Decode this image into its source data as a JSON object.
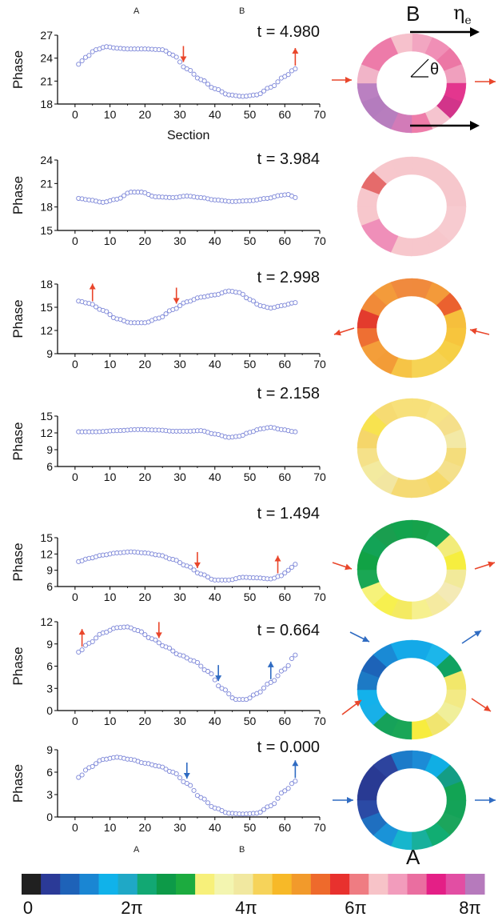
{
  "figure": {
    "top_marker_a": "A",
    "top_marker_b": "B",
    "bottom_marker_a": "A",
    "bottom_marker_b": "B",
    "panel_letter_b": "B",
    "panel_letter_a": "A",
    "eta_label": "η",
    "eta_sub": "e",
    "theta_label": "θ",
    "section_label": "Section",
    "phase_label": "Phase"
  },
  "colorbar": {
    "colors": [
      "#202020",
      "#2b3a97",
      "#1e62b8",
      "#1a86d3",
      "#10b2ea",
      "#1fa8c6",
      "#12a873",
      "#0d9a48",
      "#1cab3f",
      "#f7f07a",
      "#f3f5b0",
      "#f1e8a0",
      "#f6d35a",
      "#f7b928",
      "#f29a2b",
      "#ee6a2c",
      "#e8312e",
      "#ef7c82",
      "#f7c3c8",
      "#f29cbc",
      "#ea6ea0",
      "#e41f86",
      "#e24ea3",
      "#b67abc"
    ],
    "labels": [
      "0",
      "2π",
      "4π",
      "6π",
      "8π"
    ]
  },
  "chart_data": [
    {
      "type": "scatter",
      "id": "t4980",
      "t_label": "t = 4.980",
      "xlim": [
        -5,
        70
      ],
      "ylim": [
        18,
        27
      ],
      "xticks": [
        0,
        10,
        20,
        30,
        40,
        50,
        60,
        70
      ],
      "yticks": [
        18,
        21,
        24,
        27
      ],
      "kp": [
        [
          1,
          23.2
        ],
        [
          3,
          24.1
        ],
        [
          6,
          25.1
        ],
        [
          9,
          25.5
        ],
        [
          12,
          25.3
        ],
        [
          15,
          25.2
        ],
        [
          20,
          25.2
        ],
        [
          25,
          25.1
        ],
        [
          28,
          24.4
        ],
        [
          32,
          22.6
        ],
        [
          36,
          21.2
        ],
        [
          40,
          20.0
        ],
        [
          44,
          19.2
        ],
        [
          48,
          19.0
        ],
        [
          52,
          19.2
        ],
        [
          56,
          20.2
        ],
        [
          60,
          21.6
        ],
        [
          63,
          22.6
        ]
      ],
      "arrows": [
        {
          "x": 31,
          "dir": "down",
          "color": "red"
        },
        {
          "x": 63,
          "dir": "up",
          "color": "red"
        }
      ]
    },
    {
      "type": "scatter",
      "id": "t3984",
      "t_label": "t = 3.984",
      "xlim": [
        -5,
        70
      ],
      "ylim": [
        15,
        24
      ],
      "xticks": [
        0,
        10,
        20,
        30,
        40,
        50,
        60,
        70
      ],
      "yticks": [
        15,
        18,
        21,
        24
      ],
      "kp": [
        [
          1,
          19.1
        ],
        [
          4,
          18.9
        ],
        [
          8,
          18.6
        ],
        [
          12,
          19.0
        ],
        [
          16,
          19.9
        ],
        [
          19,
          19.9
        ],
        [
          23,
          19.3
        ],
        [
          28,
          19.2
        ],
        [
          32,
          19.4
        ],
        [
          36,
          19.2
        ],
        [
          40,
          18.9
        ],
        [
          45,
          18.7
        ],
        [
          50,
          18.8
        ],
        [
          55,
          19.1
        ],
        [
          59,
          19.5
        ],
        [
          61,
          19.6
        ],
        [
          63,
          19.2
        ]
      ],
      "arrows": []
    },
    {
      "type": "scatter",
      "id": "t2998",
      "t_label": "t = 2.998",
      "xlim": [
        -5,
        70
      ],
      "ylim": [
        9,
        18
      ],
      "xticks": [
        0,
        10,
        20,
        30,
        40,
        50,
        60,
        70
      ],
      "yticks": [
        9,
        12,
        15,
        18
      ],
      "kp": [
        [
          1,
          15.8
        ],
        [
          4,
          15.5
        ],
        [
          8,
          14.6
        ],
        [
          12,
          13.5
        ],
        [
          16,
          13.0
        ],
        [
          20,
          13.0
        ],
        [
          24,
          13.6
        ],
        [
          28,
          14.7
        ],
        [
          32,
          15.7
        ],
        [
          36,
          16.3
        ],
        [
          40,
          16.6
        ],
        [
          44,
          17.1
        ],
        [
          47,
          16.9
        ],
        [
          50,
          16.0
        ],
        [
          53,
          15.2
        ],
        [
          56,
          14.9
        ],
        [
          59,
          15.2
        ],
        [
          63,
          15.6
        ]
      ],
      "arrows": [
        {
          "x": 5,
          "dir": "up",
          "color": "red"
        },
        {
          "x": 29,
          "dir": "down",
          "color": "red"
        }
      ]
    },
    {
      "type": "scatter",
      "id": "t2158",
      "t_label": "t = 2.158",
      "xlim": [
        -5,
        70
      ],
      "ylim": [
        6,
        15
      ],
      "xticks": [
        0,
        10,
        20,
        30,
        40,
        50,
        60,
        70
      ],
      "yticks": [
        6,
        9,
        12,
        15
      ],
      "kp": [
        [
          1,
          12.2
        ],
        [
          6,
          12.2
        ],
        [
          12,
          12.4
        ],
        [
          18,
          12.6
        ],
        [
          24,
          12.5
        ],
        [
          28,
          12.3
        ],
        [
          32,
          12.3
        ],
        [
          36,
          12.4
        ],
        [
          40,
          11.8
        ],
        [
          44,
          11.2
        ],
        [
          47,
          11.4
        ],
        [
          50,
          12.1
        ],
        [
          53,
          12.7
        ],
        [
          56,
          13.0
        ],
        [
          59,
          12.6
        ],
        [
          63,
          12.2
        ]
      ],
      "arrows": []
    },
    {
      "type": "scatter",
      "id": "t1494",
      "t_label": "t = 1.494",
      "xlim": [
        -5,
        70
      ],
      "ylim": [
        6,
        15
      ],
      "xticks": [
        0,
        10,
        20,
        30,
        40,
        50,
        60,
        70
      ],
      "yticks": [
        6,
        9,
        12,
        15
      ],
      "kp": [
        [
          1,
          10.6
        ],
        [
          4,
          11.2
        ],
        [
          8,
          11.8
        ],
        [
          12,
          12.2
        ],
        [
          16,
          12.4
        ],
        [
          20,
          12.2
        ],
        [
          24,
          11.8
        ],
        [
          28,
          11.0
        ],
        [
          32,
          9.8
        ],
        [
          36,
          8.3
        ],
        [
          40,
          7.2
        ],
        [
          44,
          7.2
        ],
        [
          48,
          7.7
        ],
        [
          52,
          7.6
        ],
        [
          56,
          7.4
        ],
        [
          59,
          8.0
        ],
        [
          61,
          9.0
        ],
        [
          63,
          10.1
        ]
      ],
      "arrows": [
        {
          "x": 35,
          "dir": "down",
          "color": "red"
        },
        {
          "x": 58,
          "dir": "up",
          "color": "red"
        }
      ]
    },
    {
      "type": "scatter",
      "id": "t0664",
      "t_label": "t = 0.664",
      "xlim": [
        -5,
        70
      ],
      "ylim": [
        0,
        12
      ],
      "xticks": [
        0,
        10,
        20,
        30,
        40,
        50,
        60,
        70
      ],
      "yticks": [
        0,
        3,
        6,
        9,
        12
      ],
      "kp": [
        [
          1,
          7.9
        ],
        [
          4,
          9.1
        ],
        [
          8,
          10.5
        ],
        [
          12,
          11.2
        ],
        [
          15,
          11.3
        ],
        [
          18,
          10.8
        ],
        [
          22,
          9.7
        ],
        [
          26,
          8.6
        ],
        [
          30,
          7.5
        ],
        [
          34,
          6.7
        ],
        [
          38,
          5.3
        ],
        [
          42,
          3.0
        ],
        [
          46,
          1.5
        ],
        [
          49,
          1.5
        ],
        [
          52,
          2.3
        ],
        [
          56,
          3.8
        ],
        [
          60,
          5.6
        ],
        [
          63,
          7.5
        ]
      ],
      "arrows": [
        {
          "x": 2,
          "dir": "up",
          "color": "red"
        },
        {
          "x": 24,
          "dir": "down",
          "color": "red"
        },
        {
          "x": 41,
          "dir": "down",
          "color": "blue"
        },
        {
          "x": 56,
          "dir": "up",
          "color": "blue"
        }
      ]
    },
    {
      "type": "scatter",
      "id": "t0000",
      "t_label": "t = 0.000",
      "xlim": [
        -5,
        70
      ],
      "ylim": [
        0,
        9
      ],
      "xticks": [
        0,
        10,
        20,
        30,
        40,
        50,
        60,
        70
      ],
      "yticks": [
        0,
        3,
        6,
        9
      ],
      "kp": [
        [
          1,
          5.3
        ],
        [
          4,
          6.6
        ],
        [
          8,
          7.7
        ],
        [
          12,
          8.0
        ],
        [
          16,
          7.7
        ],
        [
          20,
          7.2
        ],
        [
          24,
          6.8
        ],
        [
          28,
          6.0
        ],
        [
          32,
          4.5
        ],
        [
          36,
          2.6
        ],
        [
          40,
          1.2
        ],
        [
          44,
          0.5
        ],
        [
          48,
          0.4
        ],
        [
          52,
          0.5
        ],
        [
          56,
          1.5
        ],
        [
          60,
          3.5
        ],
        [
          63,
          4.8
        ]
      ],
      "arrows": [
        {
          "x": 32,
          "dir": "down",
          "color": "blue"
        },
        {
          "x": 63,
          "dir": "up",
          "color": "blue"
        }
      ]
    }
  ],
  "rings": [
    {
      "sectors": [
        "#f2a6c1",
        "#f08fb6",
        "#ec77a5",
        "#f0a0be",
        "#e3368e",
        "#d2348a",
        "#f5c4cf",
        "#ee7ca9",
        "#d27bb8",
        "#b77ebe",
        "#b47cbe",
        "#ba80c1",
        "#f1b4c8",
        "#ed7ba9",
        "#ed7ba9",
        "#f6c1cc"
      ],
      "side_arrows": [
        "red-right",
        "red-right"
      ]
    },
    {
      "sectors": [
        "#f6c7cc",
        "#f6c7cc",
        "#f6c7cc",
        "#f6c7cc",
        "#f7cbd0",
        "#f7cbd0",
        "#f7c7cc",
        "#f7c7cc",
        "#f7c7cc",
        "#ef8fb9",
        "#ef8fb9",
        "#f7c7cc",
        "#f7c7cc",
        "#e56b6b",
        "#f7c7cc",
        "#f6c7cc"
      ],
      "side_arrows": []
    },
    {
      "sectors": [
        "#f08a3d",
        "#f39a3a",
        "#eb612f",
        "#f6bf3c",
        "#f7c53d",
        "#f6cf45",
        "#f6d354",
        "#f6d354",
        "#f6c446",
        "#f39c37",
        "#f49e3a",
        "#ee6f33",
        "#e33b2d",
        "#f18a38",
        "#f39b3b",
        "#f08a3e"
      ],
      "side_arrows": [
        "red-left",
        "red-left"
      ]
    },
    {
      "sectors": [
        "#f7e07a",
        "#f7e485",
        "#f5df8a",
        "#f3e9a6",
        "#f4dd7c",
        "#f4e08b",
        "#f6d968",
        "#f5da74",
        "#f5da74",
        "#f2e6a1",
        "#f3ea9f",
        "#f5e189",
        "#f5d66a",
        "#f8e34f",
        "#f6db72",
        "#f7e07a"
      ],
      "side_arrows": []
    },
    {
      "sectors": [
        "#16a24b",
        "#19a752",
        "#f2ec7a",
        "#f6ee3f",
        "#f2ea9a",
        "#f4eab6",
        "#f5eaa0",
        "#f6f08e",
        "#f4ea62",
        "#f7f04f",
        "#f6f27a",
        "#1aa754",
        "#11a245",
        "#13a356",
        "#1a9e4f",
        "#12a34e"
      ],
      "side_arrows": [
        "red-right",
        "red-right"
      ]
    },
    {
      "sectors": [
        "#14a9e8",
        "#1cb6ea",
        "#10a261",
        "#f2e76a",
        "#f3ea85",
        "#f0ef9a",
        "#f1e570",
        "#f7ec3f",
        "#1aa657",
        "#16a25a",
        "#18b0e8",
        "#13b1eb",
        "#1d7ac5",
        "#1d63b8",
        "#1a8ad5",
        "#14a9e8"
      ],
      "side_arrows": [
        "blue-up-out",
        "blue-up-out",
        "red-down-out",
        "red-down-out"
      ]
    },
    {
      "sectors": [
        "#1c8bd6",
        "#10aee4",
        "#149d85",
        "#12a454",
        "#14a358",
        "#1ca55c",
        "#11ad72",
        "#18b09c",
        "#16b6cd",
        "#1a93d8",
        "#1f6fc0",
        "#2b4aa5",
        "#293a93",
        "#293a93",
        "#2d449e",
        "#1c7bc9"
      ],
      "side_arrows": [
        "blue-right",
        "blue-right"
      ]
    }
  ]
}
